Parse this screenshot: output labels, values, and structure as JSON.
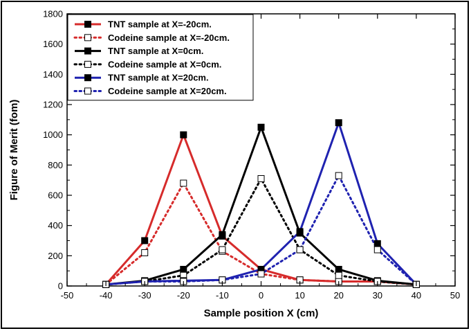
{
  "chart_data": {
    "type": "line",
    "title": "",
    "xlabel": "Sample position X (cm)",
    "ylabel": "Figure of Merit (fom)",
    "xlim": [
      -50,
      50
    ],
    "ylim": [
      0,
      1800
    ],
    "xticks": [
      -50,
      -40,
      -30,
      -20,
      -10,
      0,
      10,
      20,
      30,
      40,
      50
    ],
    "yticks": [
      0,
      200,
      400,
      600,
      800,
      1000,
      1200,
      1400,
      1600,
      1800
    ],
    "grid": false,
    "legend_position": "top-left",
    "x": [
      -40,
      -30,
      -20,
      -10,
      0,
      10,
      20,
      30,
      40
    ],
    "series": [
      {
        "name": "TNT sample at X=-20cm.",
        "color": "#d62b2b",
        "line": "solid",
        "marker": "filled-square",
        "values": [
          10,
          300,
          1000,
          330,
          110,
          40,
          30,
          30,
          10
        ]
      },
      {
        "name": "Codeine sample at X=-20cm.",
        "color": "#d62b2b",
        "line": "dotted",
        "marker": "open-square",
        "values": [
          10,
          220,
          680,
          230,
          80,
          40,
          30,
          30,
          10
        ]
      },
      {
        "name": "TNT sample at X=0cm.",
        "color": "#000000",
        "line": "solid",
        "marker": "filled-square",
        "values": [
          10,
          35,
          110,
          340,
          1050,
          350,
          110,
          35,
          10
        ]
      },
      {
        "name": "Codeine sample at X=0cm.",
        "color": "#000000",
        "line": "dotted",
        "marker": "open-square",
        "values": [
          10,
          30,
          70,
          240,
          710,
          240,
          70,
          30,
          10
        ]
      },
      {
        "name": "TNT sample at X=20cm.",
        "color": "#1f22b0",
        "line": "solid",
        "marker": "filled-square",
        "values": [
          10,
          30,
          35,
          40,
          110,
          360,
          1080,
          280,
          10
        ]
      },
      {
        "name": "Codeine sample at X=20cm.",
        "color": "#1f22b0",
        "line": "dotted",
        "marker": "open-square",
        "values": [
          10,
          30,
          30,
          40,
          80,
          240,
          730,
          240,
          10
        ]
      }
    ]
  }
}
